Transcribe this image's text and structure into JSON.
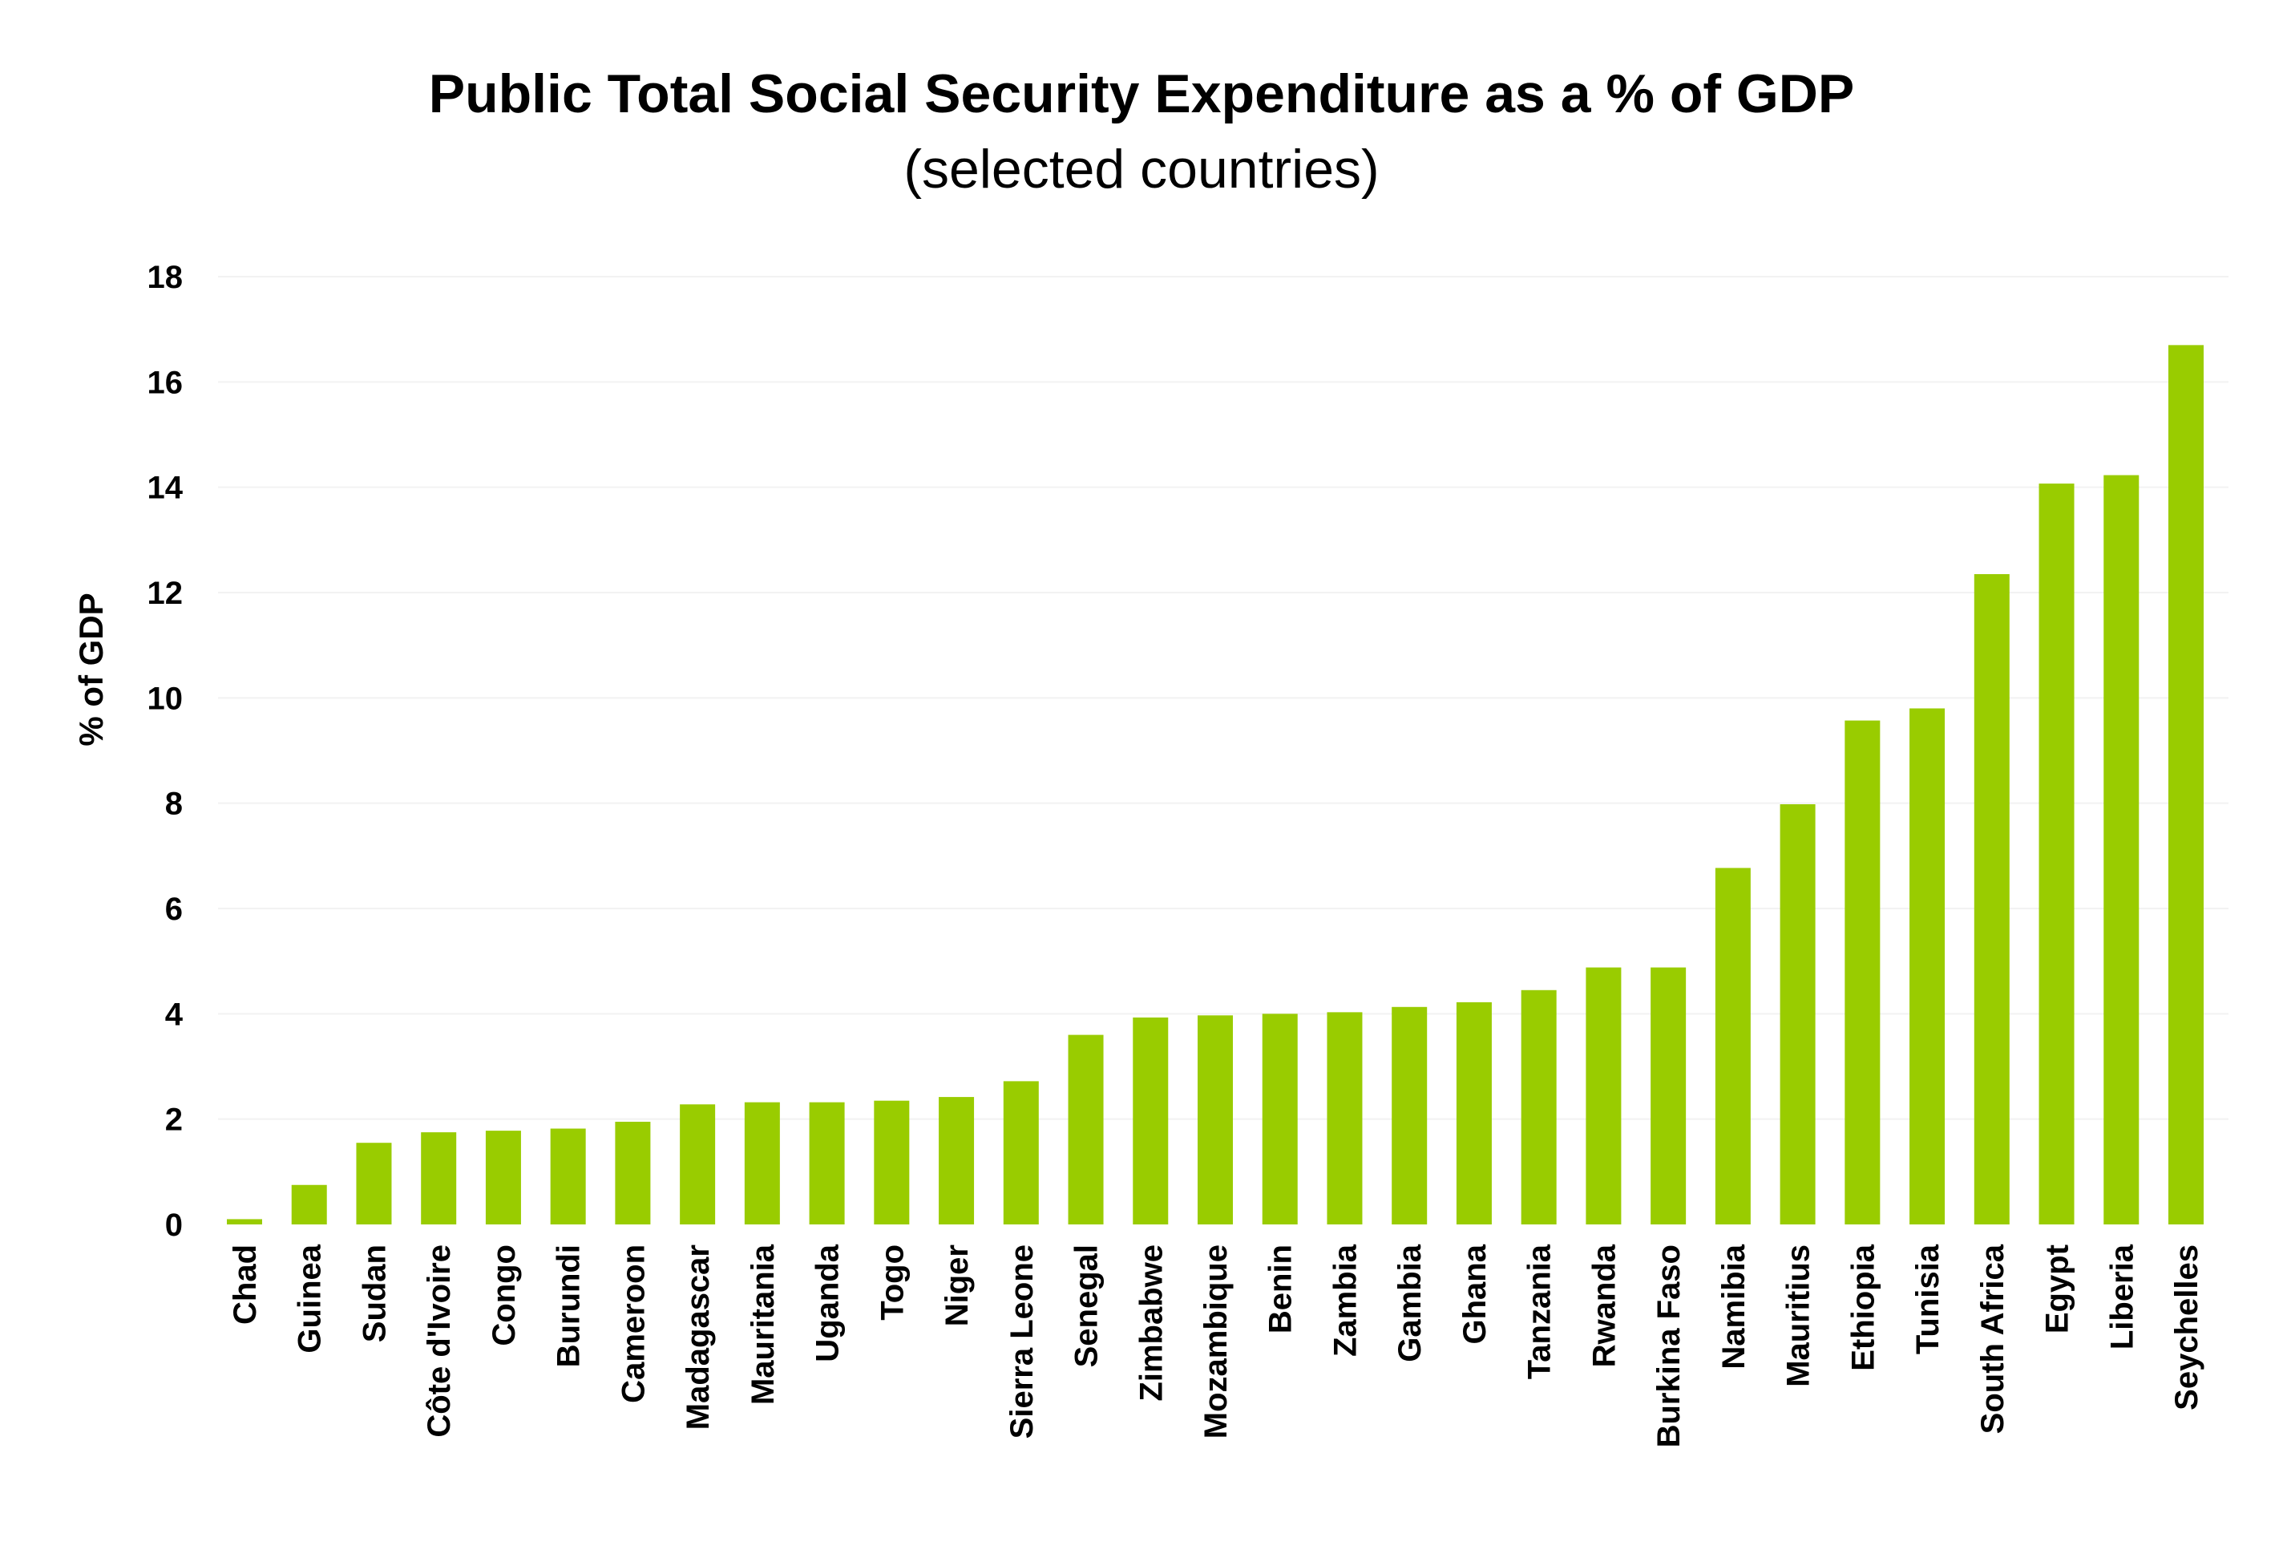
{
  "chart_data": {
    "type": "bar",
    "title": "Public Total Social Security Expenditure as a % of GDP",
    "subtitle": "(selected countries)",
    "ylabel": "% of GDP",
    "xlabel": "",
    "ylim": [
      0,
      18
    ],
    "yticks": [
      0,
      2,
      4,
      6,
      8,
      10,
      12,
      14,
      16,
      18
    ],
    "grid": "horizontal, very light",
    "legend": "none",
    "bar_color": "#99CC00",
    "categories": [
      "Chad",
      "Guinea",
      "Sudan",
      "Côte d'Ivoire",
      "Congo",
      "Burundi",
      "Cameroon",
      "Madagascar",
      "Mauritania",
      "Uganda",
      "Togo",
      "Niger",
      "Sierra Leone",
      "Senegal",
      "Zimbabwe",
      "Mozambique",
      "Benin",
      "Zambia",
      "Gambia",
      "Ghana",
      "Tanzania",
      "Rwanda",
      "Burkina Faso",
      "Namibia",
      "Mauritius",
      "Ethiopia",
      "Tunisia",
      "South Africa",
      "Egypt",
      "Liberia",
      "Seychelles"
    ],
    "values": [
      0.1,
      0.75,
      1.55,
      1.75,
      1.78,
      1.82,
      1.95,
      2.28,
      2.32,
      2.32,
      2.35,
      2.42,
      2.72,
      3.6,
      3.93,
      3.97,
      4.0,
      4.03,
      4.13,
      4.22,
      4.45,
      4.88,
      4.88,
      6.77,
      7.98,
      9.57,
      9.8,
      12.35,
      14.07,
      14.23,
      16.7
    ]
  }
}
